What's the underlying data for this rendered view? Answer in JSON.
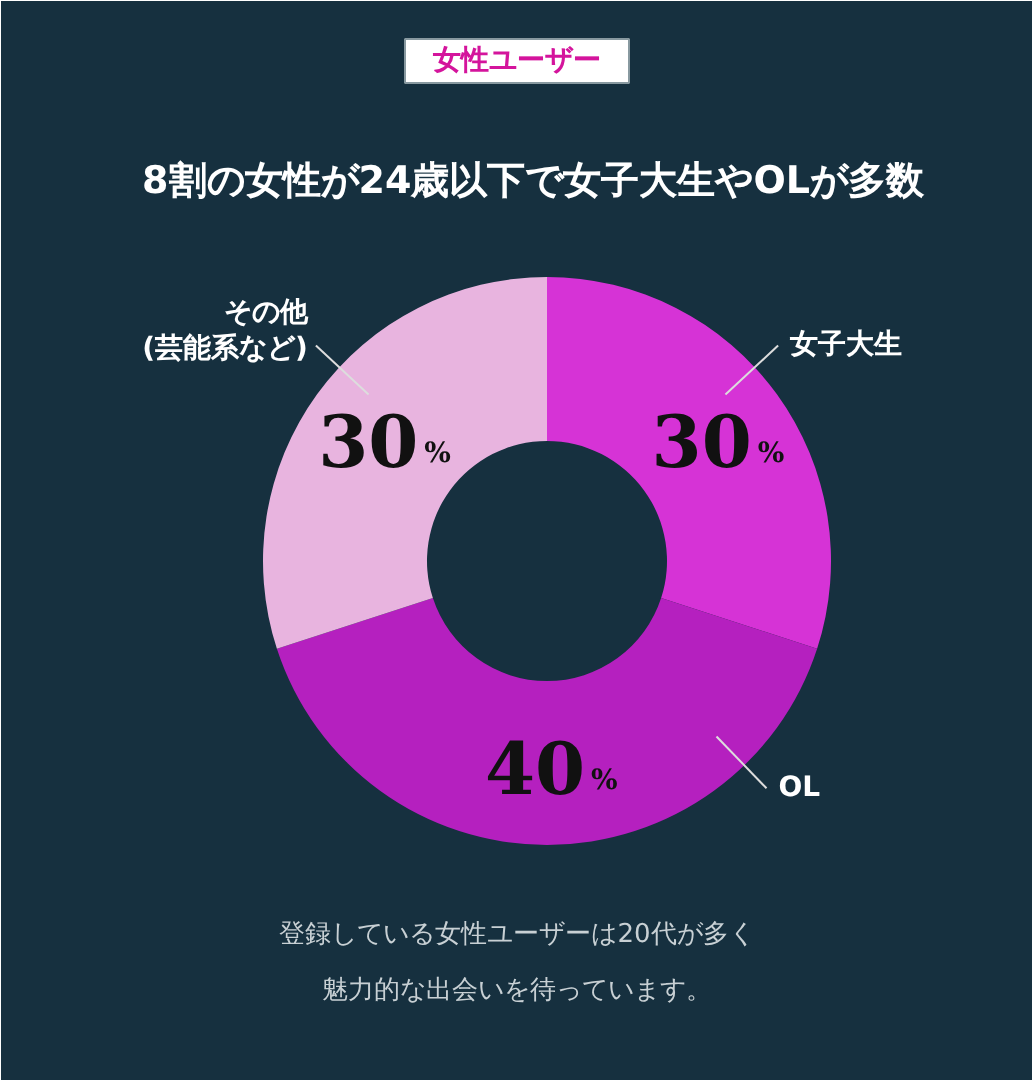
{
  "chart_data": {
    "type": "donut",
    "subtitle": "女性ユーザー",
    "title": "8割の女性が24歳以下で女子大生やOLが多数",
    "categories": [
      "女子大生",
      "OL",
      "その他\n(芸能系など)"
    ],
    "values": [
      30,
      40,
      30
    ],
    "colors": [
      "#d633d6",
      "#b520bf",
      "#e8b4df"
    ],
    "value_labels": [
      "30%",
      "40%",
      "30%"
    ],
    "annotations": [
      "登録している女性ユーザーは20代が多く",
      "魅力的な出会いを待っています。"
    ]
  }
}
